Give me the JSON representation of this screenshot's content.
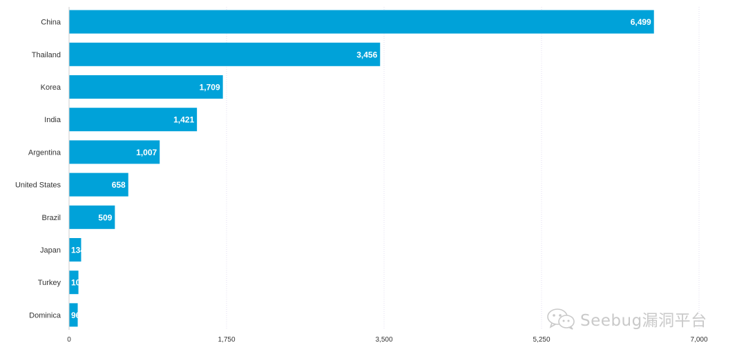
{
  "chart_data": {
    "type": "bar",
    "orientation": "horizontal",
    "categories": [
      "China",
      "Thailand",
      "Korea",
      "India",
      "Argentina",
      "United States",
      "Brazil",
      "Japan",
      "Turkey",
      "Dominica"
    ],
    "values": [
      6499,
      3456,
      1709,
      1421,
      1007,
      658,
      509,
      134,
      104,
      96
    ],
    "value_labels": [
      "6,499",
      "3,456",
      "1,709",
      "1,421",
      "1,007",
      "658",
      "509",
      "134",
      "104",
      "96"
    ],
    "xlim": [
      0,
      7000
    ],
    "x_ticks": [
      0,
      1750,
      3500,
      5250,
      7000
    ],
    "x_tick_labels": [
      "0",
      "1,750",
      "3,500",
      "5,250",
      "7,000"
    ],
    "bar_color": "#00a2d9",
    "grid": true,
    "title": "",
    "xlabel": "",
    "ylabel": ""
  },
  "watermark": {
    "text": "Seebug漏洞平台",
    "icon": "wechat-icon",
    "color": "#c9c9c9"
  }
}
